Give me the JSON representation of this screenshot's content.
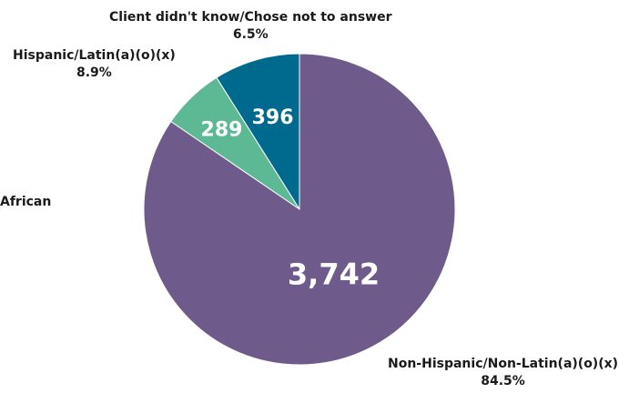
{
  "chart_data": {
    "type": "pie",
    "categories": [
      "African",
      "Hispanic/Latin(a)(o)(x)",
      "Client didn't know/Chose not to answer",
      "Non-Hispanic/Non-Latin(a)(o)(x)"
    ],
    "values": [
      0,
      396,
      289,
      3742
    ],
    "value_labels": [
      "",
      "396",
      "289",
      "3,742"
    ],
    "percent_labels": [
      "",
      "8.9%",
      "6.5%",
      "84.5%"
    ],
    "colors": [
      "#6f5a8c",
      "#006a8e",
      "#5db894",
      "#6f5a8c"
    ],
    "start_angle": "12 o'clock",
    "direction": "counterclockwise",
    "legend": "none"
  }
}
